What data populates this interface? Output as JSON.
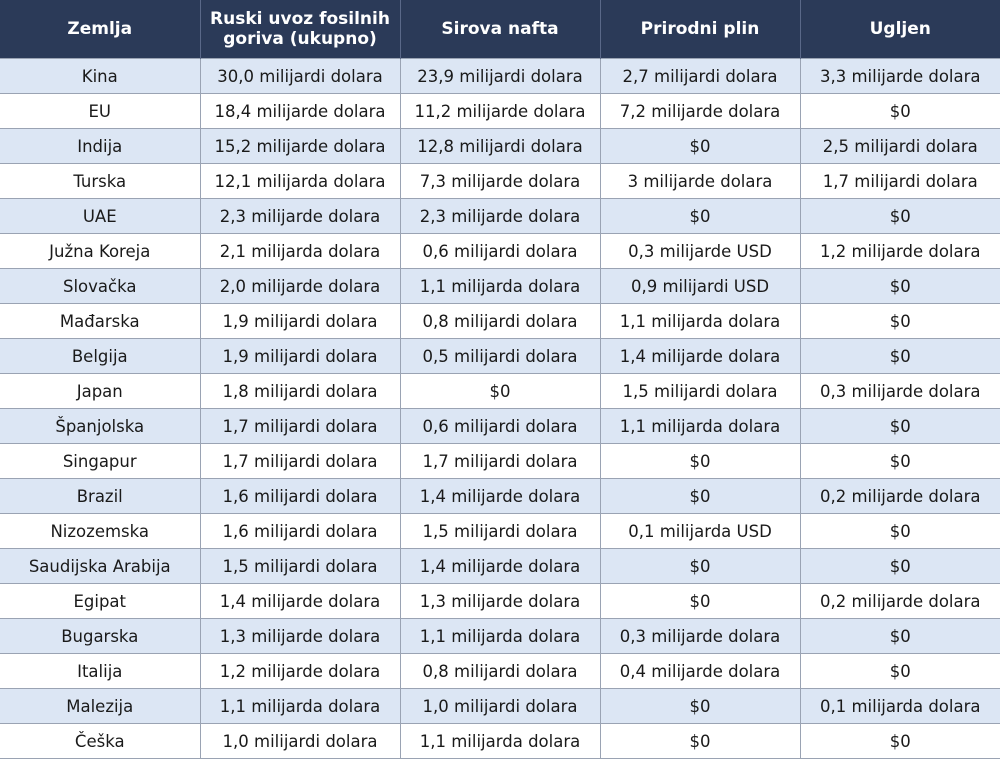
{
  "headers": [
    "Zemlja",
    "Ruski uvoz fosilnih goriva (ukupno)",
    "Sirova nafta",
    "Prirodni plin",
    "Ugljen"
  ],
  "rows": [
    [
      "Kina",
      "30,0 milijardi dolara",
      "23,9 milijardi dolara",
      "2,7 milijardi dolara",
      "3,3 milijarde dolara"
    ],
    [
      "EU",
      "18,4 milijarde dolara",
      "11,2 milijarde dolara",
      "7,2 milijarde dolara",
      "$0"
    ],
    [
      "Indija",
      "15,2 milijarde dolara",
      "12,8 milijardi dolara",
      "$0",
      "2,5 milijardi dolara"
    ],
    [
      "Turska",
      "12,1 milijarda dolara",
      "7,3 milijarde dolara",
      "3 milijarde dolara",
      "1,7 milijardi dolara"
    ],
    [
      "UAE",
      "2,3 milijarde dolara",
      "2,3 milijarde dolara",
      "$0",
      "$0"
    ],
    [
      "Južna Koreja",
      "2,1 milijarda dolara",
      "0,6 milijardi dolara",
      "0,3 milijarde USD",
      "1,2 milijarde dolara"
    ],
    [
      "Slovačka",
      "2,0 milijarde dolara",
      "1,1 milijarda dolara",
      "0,9 milijardi USD",
      "$0"
    ],
    [
      "Mađarska",
      "1,9 milijardi dolara",
      "0,8 milijardi dolara",
      "1,1 milijarda dolara",
      "$0"
    ],
    [
      "Belgija",
      "1,9 milijardi dolara",
      "0,5 milijardi dolara",
      "1,4 milijarde dolara",
      "$0"
    ],
    [
      "Japan",
      "1,8 milijardi dolara",
      "$0",
      "1,5 milijardi dolara",
      "0,3 milijarde dolara"
    ],
    [
      "Španjolska",
      "1,7 milijardi dolara",
      "0,6 milijardi dolara",
      "1,1 milijarda dolara",
      "$0"
    ],
    [
      "Singapur",
      "1,7 milijardi dolara",
      "1,7 milijardi dolara",
      "$0",
      "$0"
    ],
    [
      "Brazil",
      "1,6 milijardi dolara",
      "1,4 milijarde dolara",
      "$0",
      "0,2 milijarde dolara"
    ],
    [
      "Nizozemska",
      "1,6 milijardi dolara",
      "1,5 milijardi dolara",
      "0,1 milijarda USD",
      "$0"
    ],
    [
      "Saudijska Arabija",
      "1,5 milijardi dolara",
      "1,4 milijarde dolara",
      "$0",
      "$0"
    ],
    [
      "Egipat",
      "1,4 milijarde dolara",
      "1,3 milijarde dolara",
      "$0",
      "0,2 milijarde dolara"
    ],
    [
      "Bugarska",
      "1,3 milijarde dolara",
      "1,1 milijarda dolara",
      "0,3 milijarde dolara",
      "$0"
    ],
    [
      "Italija",
      "1,2 milijarde dolara",
      "0,8 milijardi dolara",
      "0,4 milijarde dolara",
      "$0"
    ],
    [
      "Malezija",
      "1,1 milijarda dolara",
      "1,0 milijardi dolara",
      "$0",
      "0,1 milijarda dolara"
    ],
    [
      "Češka",
      "1,0 milijardi dolara",
      "1,1 milijarda dolara",
      "$0",
      "$0"
    ]
  ],
  "colors": {
    "header_bg": "#2b3a58",
    "header_text": "#ffffff",
    "stripe_row": "#dce6f4",
    "plain_row": "#ffffff",
    "grid": "#9aa3b3"
  }
}
